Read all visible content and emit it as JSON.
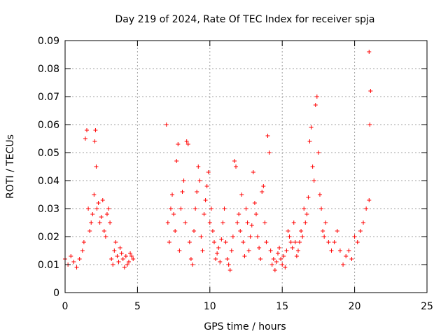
{
  "chart_data": {
    "type": "scatter",
    "title": "Day 219 of 2024, Rate Of TEC Index for receiver spja",
    "xlabel": "GPS time / hours",
    "ylabel": "ROTI / TECUs",
    "xlim": [
      0,
      25
    ],
    "ylim": [
      0,
      0.09
    ],
    "xticks": [
      0,
      5,
      10,
      15,
      20,
      25
    ],
    "xtick_labels": [
      "0",
      "5",
      "10",
      "15",
      "20",
      "25"
    ],
    "yticks": [
      0,
      0.01,
      0.02,
      0.03,
      0.04,
      0.05,
      0.06,
      0.07,
      0.08,
      0.09
    ],
    "ytick_labels": [
      "0",
      "0.01",
      "0.02",
      "0.03",
      "0.04",
      "0.05",
      "0.06",
      "0.07",
      "0.08",
      "0.09"
    ],
    "grid": true,
    "marker": "+",
    "color": "#ff0000",
    "series": [
      {
        "name": "ROTI",
        "x": [
          0.0,
          0.2,
          0.4,
          0.6,
          0.8,
          1.0,
          1.2,
          1.3,
          1.4,
          1.5,
          1.6,
          1.7,
          1.8,
          1.9,
          2.0,
          2.05,
          2.1,
          2.15,
          2.2,
          2.3,
          2.4,
          2.5,
          2.6,
          2.7,
          2.8,
          2.9,
          3.0,
          3.1,
          3.2,
          3.3,
          3.4,
          3.5,
          3.6,
          3.7,
          3.8,
          3.9,
          4.0,
          4.1,
          4.2,
          4.3,
          4.4,
          4.5,
          4.6,
          4.7,
          7.0,
          7.1,
          7.2,
          7.3,
          7.4,
          7.5,
          7.6,
          7.7,
          7.8,
          7.9,
          8.0,
          8.1,
          8.2,
          8.3,
          8.4,
          8.5,
          8.6,
          8.7,
          8.8,
          8.9,
          9.0,
          9.1,
          9.2,
          9.3,
          9.4,
          9.5,
          9.6,
          9.7,
          9.8,
          9.9,
          10.0,
          10.1,
          10.2,
          10.3,
          10.4,
          10.5,
          10.6,
          10.7,
          10.8,
          10.9,
          11.0,
          11.1,
          11.2,
          11.3,
          11.4,
          11.5,
          11.6,
          11.7,
          11.8,
          11.9,
          12.0,
          12.1,
          12.2,
          12.3,
          12.4,
          12.5,
          12.6,
          12.7,
          12.8,
          12.9,
          13.0,
          13.1,
          13.2,
          13.3,
          13.4,
          13.5,
          13.6,
          13.7,
          13.8,
          13.9,
          14.0,
          14.1,
          14.2,
          14.3,
          14.4,
          14.5,
          14.6,
          14.7,
          14.8,
          14.9,
          15.0,
          15.1,
          15.2,
          15.3,
          15.4,
          15.5,
          15.6,
          15.7,
          15.8,
          15.9,
          16.0,
          16.1,
          16.2,
          16.3,
          16.4,
          16.5,
          16.6,
          16.7,
          16.8,
          16.9,
          17.0,
          17.1,
          17.2,
          17.3,
          17.4,
          17.5,
          17.6,
          17.7,
          17.8,
          17.9,
          18.0,
          18.2,
          18.4,
          18.6,
          18.8,
          19.0,
          19.2,
          19.4,
          19.6,
          19.8,
          20.0,
          20.2,
          20.4,
          20.6,
          20.8,
          21.0,
          21.05,
          21.1
        ],
        "y": [
          0.012,
          0.01,
          0.013,
          0.011,
          0.009,
          0.012,
          0.015,
          0.018,
          0.055,
          0.058,
          0.03,
          0.022,
          0.025,
          0.028,
          0.035,
          0.054,
          0.058,
          0.045,
          0.03,
          0.032,
          0.025,
          0.027,
          0.033,
          0.022,
          0.02,
          0.028,
          0.03,
          0.025,
          0.012,
          0.01,
          0.015,
          0.018,
          0.013,
          0.011,
          0.016,
          0.014,
          0.012,
          0.009,
          0.013,
          0.01,
          0.011,
          0.014,
          0.013,
          0.012,
          0.06,
          0.025,
          0.018,
          0.03,
          0.035,
          0.028,
          0.022,
          0.047,
          0.053,
          0.015,
          0.03,
          0.036,
          0.04,
          0.025,
          0.054,
          0.053,
          0.018,
          0.012,
          0.01,
          0.022,
          0.03,
          0.036,
          0.045,
          0.04,
          0.02,
          0.015,
          0.028,
          0.033,
          0.038,
          0.043,
          0.025,
          0.03,
          0.022,
          0.018,
          0.012,
          0.014,
          0.016,
          0.011,
          0.019,
          0.025,
          0.03,
          0.018,
          0.012,
          0.01,
          0.008,
          0.015,
          0.02,
          0.047,
          0.045,
          0.025,
          0.028,
          0.022,
          0.035,
          0.018,
          0.013,
          0.03,
          0.025,
          0.015,
          0.02,
          0.024,
          0.043,
          0.032,
          0.028,
          0.02,
          0.016,
          0.012,
          0.036,
          0.038,
          0.025,
          0.018,
          0.056,
          0.05,
          0.015,
          0.01,
          0.012,
          0.008,
          0.011,
          0.014,
          0.016,
          0.012,
          0.01,
          0.013,
          0.009,
          0.015,
          0.022,
          0.02,
          0.018,
          0.016,
          0.025,
          0.018,
          0.013,
          0.015,
          0.018,
          0.022,
          0.02,
          0.03,
          0.025,
          0.028,
          0.034,
          0.054,
          0.059,
          0.045,
          0.04,
          0.067,
          0.07,
          0.05,
          0.035,
          0.03,
          0.022,
          0.02,
          0.025,
          0.018,
          0.015,
          0.018,
          0.022,
          0.015,
          0.01,
          0.013,
          0.015,
          0.012,
          0.02,
          0.018,
          0.022,
          0.025,
          0.03,
          0.033,
          0.06,
          0.072
        ],
        "outliers": [
          {
            "x": 21.0,
            "y": 0.086
          }
        ]
      }
    ]
  }
}
